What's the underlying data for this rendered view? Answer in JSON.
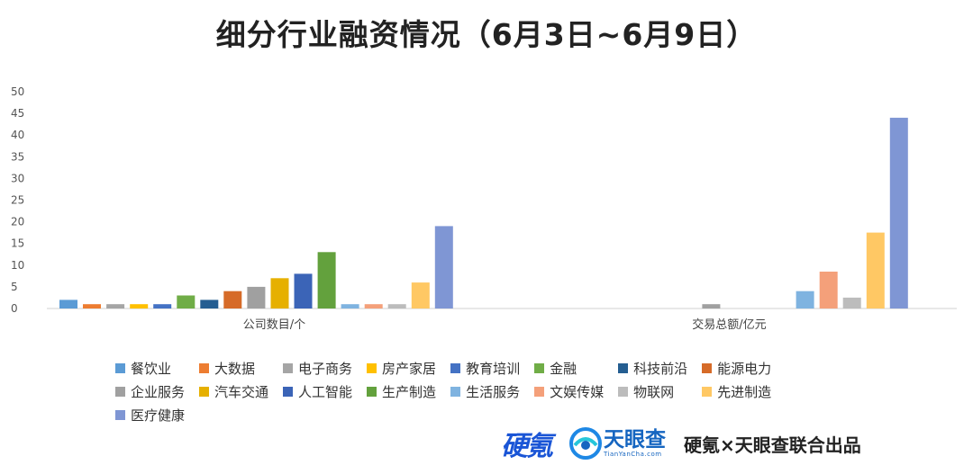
{
  "title": "细分行业融资情况（6月3日~6月9日）",
  "footer": {
    "logo_yingke": "硬氪",
    "logo_tianyancha": "天眼查",
    "logo_tianyancha_en": "TianYanCha.com",
    "credit": "硬氪×天眼查联合出品"
  },
  "chart_data": {
    "type": "bar",
    "categories": [
      "公司数目/个",
      "交易总额/亿元"
    ],
    "ylim": [
      0,
      50
    ],
    "yticks": [
      0,
      5,
      10,
      15,
      20,
      25,
      30,
      35,
      40,
      45,
      50
    ],
    "grid": false,
    "legend_position": "bottom",
    "series": [
      {
        "name": "餐饮业",
        "color": "#5b9bd5",
        "values": [
          2,
          0
        ]
      },
      {
        "name": "大数据",
        "color": "#ed7d31",
        "values": [
          1,
          0
        ]
      },
      {
        "name": "电子商务",
        "color": "#a5a5a5",
        "values": [
          1,
          0
        ]
      },
      {
        "name": "房产家居",
        "color": "#ffc000",
        "values": [
          1,
          0
        ]
      },
      {
        "name": "教育培训",
        "color": "#4472c4",
        "values": [
          1,
          0
        ]
      },
      {
        "name": "金融",
        "color": "#70ad47",
        "values": [
          3,
          0
        ]
      },
      {
        "name": "科技前沿",
        "color": "#255e91",
        "values": [
          2,
          0
        ]
      },
      {
        "name": "能源电力",
        "color": "#d66b28",
        "values": [
          4,
          0
        ]
      },
      {
        "name": "企业服务",
        "color": "#a0a0a0",
        "values": [
          5,
          1
        ]
      },
      {
        "name": "汽车交通",
        "color": "#e6b000",
        "values": [
          7,
          0
        ]
      },
      {
        "name": "人工智能",
        "color": "#3b64b7",
        "values": [
          8,
          0
        ]
      },
      {
        "name": "生产制造",
        "color": "#63a13d",
        "values": [
          13,
          0
        ]
      },
      {
        "name": "生活服务",
        "color": "#7fb3e0",
        "values": [
          1,
          4
        ]
      },
      {
        "name": "文娱传媒",
        "color": "#f4a07a",
        "values": [
          1,
          8.5
        ]
      },
      {
        "name": "物联网",
        "color": "#bcbcbc",
        "values": [
          1,
          2.5
        ]
      },
      {
        "name": "先进制造",
        "color": "#ffc864",
        "values": [
          6,
          17.5
        ]
      },
      {
        "name": "医疗健康",
        "color": "#7f96d4",
        "values": [
          19,
          44
        ]
      }
    ]
  }
}
